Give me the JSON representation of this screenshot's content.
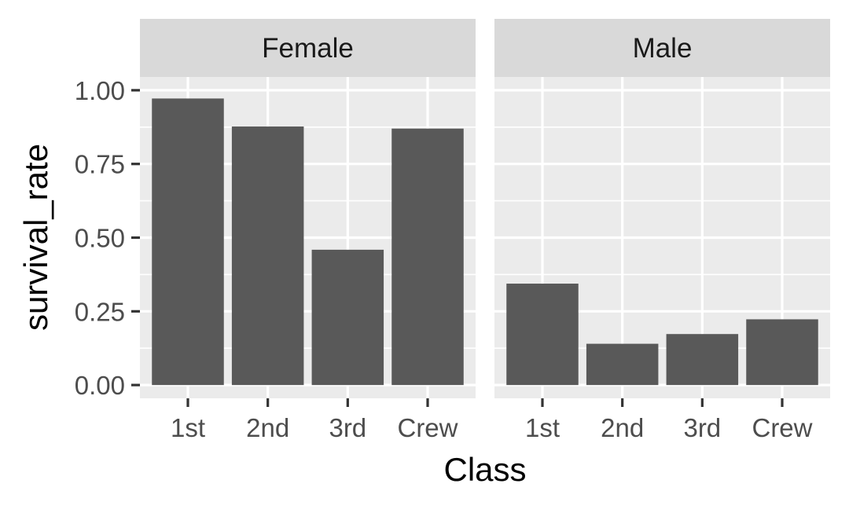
{
  "chart_data": {
    "type": "bar",
    "facet_by": "sex",
    "xlabel": "Class",
    "ylabel": "survival_rate",
    "categories": [
      "1st",
      "2nd",
      "3rd",
      "Crew"
    ],
    "ylim": [
      -0.045,
      1.045
    ],
    "yticks": [
      0.0,
      0.25,
      0.5,
      0.75,
      1.0
    ],
    "ytick_labels": [
      "0.00",
      "0.25",
      "0.50",
      "0.75",
      "1.00"
    ],
    "grid": true,
    "facets": [
      {
        "label": "Female",
        "values": [
          0.972,
          0.877,
          0.459,
          0.87
        ]
      },
      {
        "label": "Male",
        "values": [
          0.344,
          0.14,
          0.173,
          0.223
        ]
      }
    ],
    "colors": {
      "bar": "#595959",
      "panel": "#ebebeb",
      "strip": "#d9d9d9",
      "grid": "#ffffff",
      "tick": "#333333"
    }
  }
}
